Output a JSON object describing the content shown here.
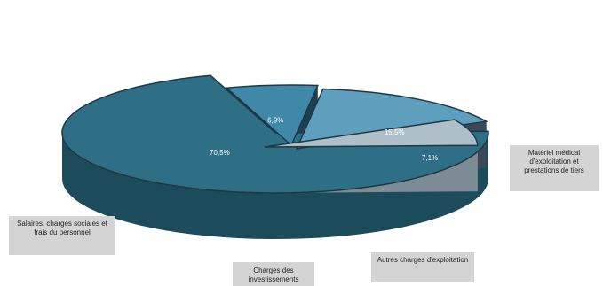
{
  "chart_data": {
    "type": "pie",
    "three_d": true,
    "legend": "none",
    "slices": [
      {
        "label": "Salaires, charges sociales et frais du personnel",
        "value": 70.5,
        "value_label": "70,5%",
        "color": "#2f6f86",
        "side_color": "#1c4b5c",
        "exploded": false
      },
      {
        "label": "Matériel médical d'exploitation et prestations de tiers",
        "value": 6.9,
        "value_label": "6,9%",
        "color": "#3f88a8",
        "side_color": "#1d3f4f",
        "exploded": true
      },
      {
        "label": "Autres charges d'exploitation",
        "value": 15.5,
        "value_label": "15,5%",
        "color": "#5e9fbd",
        "side_color": "#3a4a55",
        "exploded": true
      },
      {
        "label": "Charges des investissements",
        "value": 7.1,
        "value_label": "7,1%",
        "color": "#aebfca",
        "side_color": "#7d8b94",
        "exploded": true
      }
    ]
  },
  "callouts": {
    "salaires": "Salaires, charges sociales et frais du personnel",
    "materiel": "Matériel médical d'exploitation et prestations de tiers",
    "autres": "Autres charges d'exploitation",
    "charges": "Charges des investissements"
  }
}
